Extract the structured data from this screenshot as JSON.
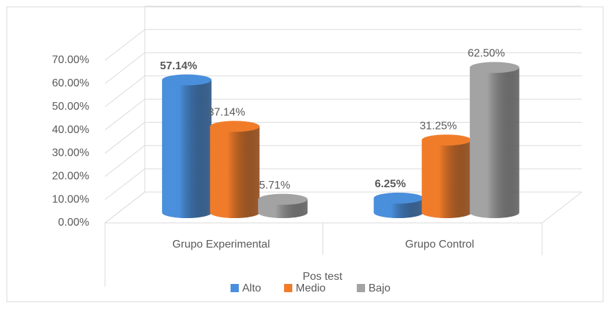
{
  "chart_data": {
    "type": "bar3d",
    "categories": [
      "Grupo Experimental",
      "Grupo Control"
    ],
    "series": [
      {
        "name": "Alto",
        "color": "#4a8fdc",
        "values": [
          57.14,
          6.25
        ],
        "value_labels": [
          "57.14%",
          "6.25%"
        ],
        "label_bold": [
          true,
          true
        ]
      },
      {
        "name": "Medio",
        "color": "#f07c2a",
        "values": [
          37.14,
          31.25
        ],
        "value_labels": [
          "37.14%",
          "31.25%"
        ],
        "label_bold": [
          false,
          false
        ]
      },
      {
        "name": "Bajo",
        "color": "#a3a3a3",
        "values": [
          5.71,
          62.5
        ],
        "value_labels": [
          "5.71%",
          "62.50%"
        ],
        "label_bold": [
          false,
          false
        ]
      }
    ],
    "legend_title": "Pos test",
    "legend": "bottom",
    "ylim": [
      0,
      80
    ],
    "yticks": [
      {
        "value": 0,
        "label": "0.00%"
      },
      {
        "value": 10,
        "label": "10.00%"
      },
      {
        "value": 20,
        "label": "20.00%"
      },
      {
        "value": 30,
        "label": "30.00%"
      },
      {
        "value": 40,
        "label": "40.00%"
      },
      {
        "value": 50,
        "label": "50.00%"
      },
      {
        "value": 60,
        "label": "60.00%"
      },
      {
        "value": 70,
        "label": "70.00%"
      }
    ],
    "grid": true
  }
}
